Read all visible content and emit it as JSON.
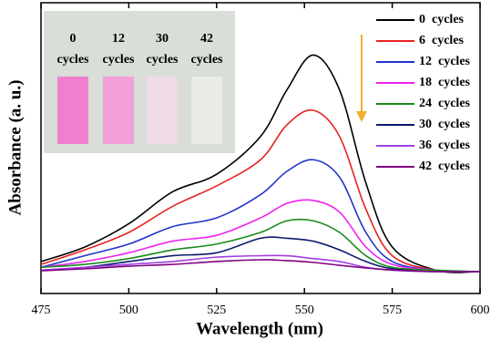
{
  "chart_data": {
    "type": "line",
    "xlabel": "Wavelength (nm)",
    "ylabel": "Absorbance (a. u.)",
    "x": [
      475,
      487.5,
      500,
      512.5,
      525,
      537.5,
      545,
      552.5,
      560,
      567.5,
      575,
      587.5,
      600
    ],
    "xlim": [
      475,
      600
    ],
    "xticks": [
      475,
      500,
      525,
      550,
      575,
      600
    ],
    "ylim": [
      0,
      1
    ],
    "series": [
      {
        "name": "0  cycles",
        "color": "#000000",
        "values": [
          0.11,
          0.16,
          0.24,
          0.35,
          0.41,
          0.54,
          0.7,
          0.82,
          0.7,
          0.38,
          0.16,
          0.08,
          0.075
        ]
      },
      {
        "name": "6  cycles",
        "color": "#e8231f",
        "values": [
          0.1,
          0.15,
          0.21,
          0.3,
          0.37,
          0.46,
          0.58,
          0.63,
          0.54,
          0.29,
          0.13,
          0.08,
          0.075
        ]
      },
      {
        "name": "12  cycles",
        "color": "#2233cc",
        "values": [
          0.09,
          0.13,
          0.17,
          0.23,
          0.26,
          0.34,
          0.42,
          0.46,
          0.4,
          0.21,
          0.11,
          0.08,
          0.075
        ]
      },
      {
        "name": "18  cycles",
        "color": "#ee22ee",
        "values": [
          0.09,
          0.11,
          0.14,
          0.18,
          0.2,
          0.26,
          0.31,
          0.32,
          0.28,
          0.16,
          0.1,
          0.08,
          0.075
        ]
      },
      {
        "name": "24  cycles",
        "color": "#1a8a1a",
        "values": [
          0.09,
          0.1,
          0.12,
          0.15,
          0.17,
          0.21,
          0.25,
          0.25,
          0.21,
          0.13,
          0.09,
          0.08,
          0.075
        ]
      },
      {
        "name": "30  cycles",
        "color": "#0b1a6e",
        "values": [
          0.08,
          0.09,
          0.11,
          0.13,
          0.14,
          0.19,
          0.19,
          0.18,
          0.15,
          0.11,
          0.085,
          0.075,
          0.075
        ]
      },
      {
        "name": "36  cycles",
        "color": "#a040e0",
        "values": [
          0.08,
          0.09,
          0.1,
          0.11,
          0.125,
          0.13,
          0.13,
          0.12,
          0.11,
          0.09,
          0.08,
          0.075,
          0.075
        ]
      },
      {
        "name": "42  cycles",
        "color": "#800080",
        "values": [
          0.078,
          0.085,
          0.094,
          0.1,
          0.11,
          0.116,
          0.113,
          0.107,
          0.097,
          0.088,
          0.081,
          0.075,
          0.075
        ]
      }
    ],
    "inset": {
      "labels": [
        [
          "0",
          "cycles"
        ],
        [
          "12",
          "cycles"
        ],
        [
          "30",
          "cycles"
        ],
        [
          "42",
          "cycles"
        ]
      ]
    }
  }
}
